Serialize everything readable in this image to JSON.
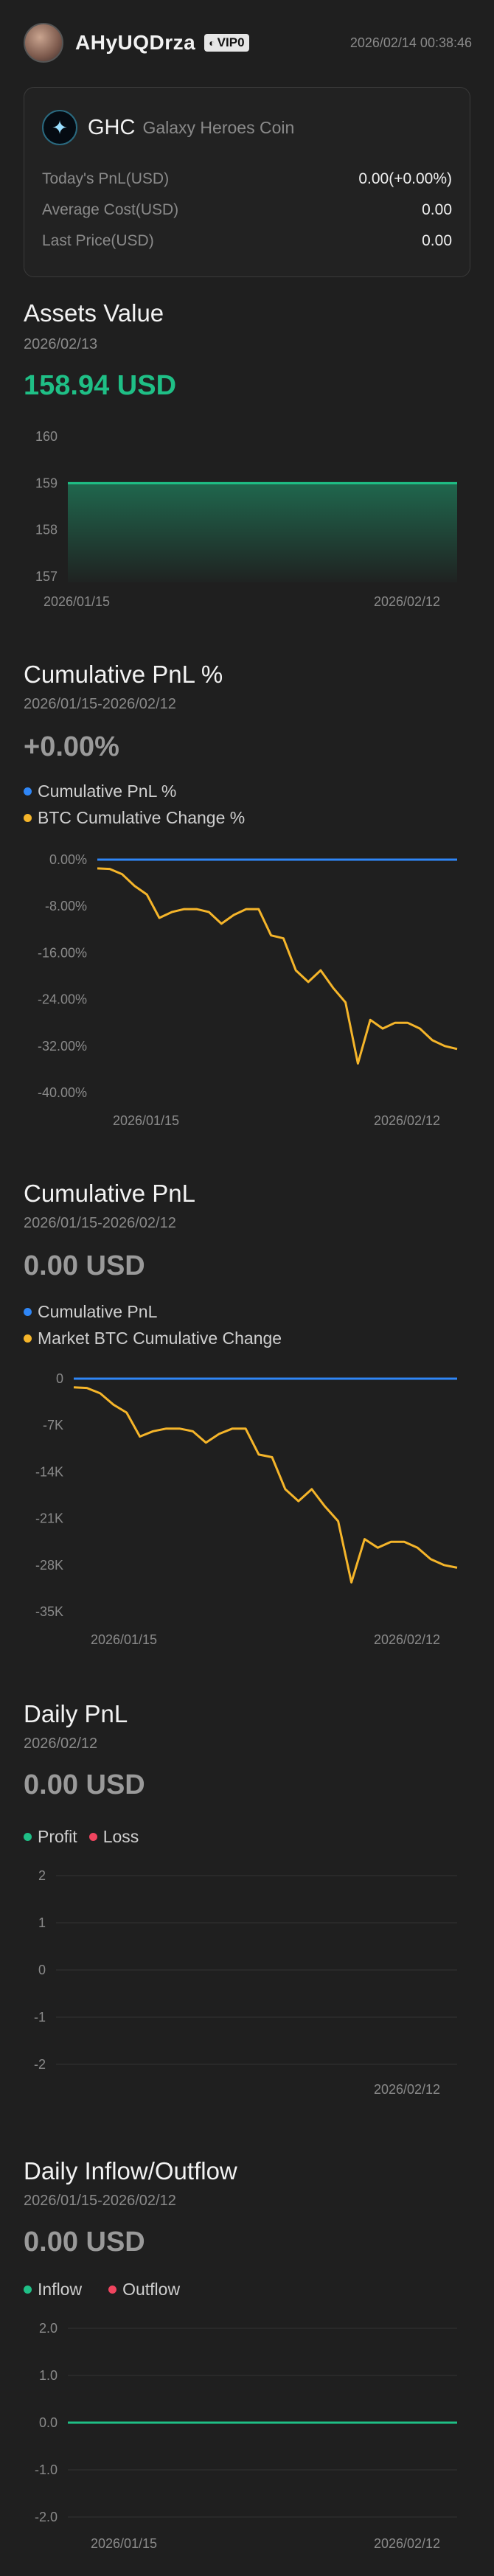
{
  "header": {
    "username": "AHyUQDrza",
    "vip_label": "VIP0",
    "timestamp": "2026/02/14 00:38:46"
  },
  "coin": {
    "symbol": "GHC",
    "name": "Galaxy Heroes Coin",
    "rows": [
      {
        "label": "Today's PnL(USD)",
        "value": "0.00(+0.00%)"
      },
      {
        "label": "Average Cost(USD)",
        "value": "0.00"
      },
      {
        "label": "Last Price(USD)",
        "value": "0.00"
      }
    ]
  },
  "colors": {
    "green": "#1fbf86",
    "blue": "#2f86f6",
    "yellow": "#f5b52a",
    "red": "#f0455f",
    "grey_value": "#9a9a9a"
  },
  "assets": {
    "title": "Assets Value",
    "date": "2026/02/13",
    "value": "158.94 USD"
  },
  "cum_pct": {
    "title": "Cumulative PnL %",
    "range": "2026/01/15-2026/02/12",
    "value": "+0.00%",
    "legend1": "Cumulative PnL %",
    "legend2": "BTC Cumulative Change %"
  },
  "cum_pnl": {
    "title": "Cumulative PnL",
    "range": "2026/01/15-2026/02/12",
    "value": "0.00 USD",
    "legend1": "Cumulative PnL",
    "legend2": "Market BTC Cumulative Change"
  },
  "daily": {
    "title": "Daily PnL",
    "date": "2026/02/12",
    "value": "0.00 USD",
    "legend1": "Profit",
    "legend2": "Loss"
  },
  "flow": {
    "title": "Daily Inflow/Outflow",
    "range": "2026/01/15-2026/02/12",
    "value": "0.00 USD",
    "legend1": "Inflow",
    "legend2": "Outflow"
  },
  "chart_data": [
    {
      "id": "assets",
      "type": "area",
      "yticks": [
        "160",
        "159",
        "158",
        "157"
      ],
      "ylim": [
        157,
        160
      ],
      "xticks": [
        "2026/01/15",
        "2026/02/12"
      ],
      "series": [
        {
          "values": [
            159,
            159
          ]
        }
      ]
    },
    {
      "id": "cum_pct",
      "type": "line",
      "yticks": [
        "0.00%",
        "-8.00%",
        "-16.00%",
        "-24.00%",
        "-32.00%",
        "-40.00%"
      ],
      "ylim": [
        -40,
        0
      ],
      "xticks": [
        "2026/01/15",
        "2026/02/12"
      ],
      "series": [
        {
          "name": "Cumulative PnL %",
          "values": [
            0,
            0
          ]
        },
        {
          "name": "BTC Cumulative Change %",
          "values": [
            -1.5,
            -1.6,
            -2.5,
            -4.5,
            -6,
            -10,
            -9,
            -8.5,
            -8.5,
            -9,
            -11,
            -9.5,
            -8.5,
            -8.5,
            -13,
            -13.5,
            -19,
            -21,
            -19,
            -22,
            -24.5,
            -35,
            -27.5,
            -29,
            -28,
            -28,
            -29,
            -31,
            -32,
            -32.5
          ]
        }
      ]
    },
    {
      "id": "cum_pnl",
      "type": "line",
      "yticks": [
        "0",
        "-7K",
        "-14K",
        "-21K",
        "-28K",
        "-35K"
      ],
      "ylim": [
        -35000,
        0
      ],
      "xticks": [
        "2026/01/15",
        "2026/02/12"
      ],
      "series": [
        {
          "name": "Cumulative PnL",
          "values": [
            0,
            0
          ]
        },
        {
          "name": "Market BTC Cumulative Change",
          "values": [
            -1300,
            -1400,
            -2200,
            -3900,
            -5100,
            -8700,
            -7900,
            -7500,
            -7500,
            -7900,
            -9600,
            -8300,
            -7500,
            -7500,
            -11400,
            -11800,
            -16600,
            -18400,
            -16600,
            -19200,
            -21400,
            -30600,
            -24100,
            -25400,
            -24500,
            -24500,
            -25400,
            -27100,
            -28000,
            -28400
          ]
        }
      ]
    },
    {
      "id": "daily",
      "type": "bar",
      "yticks": [
        "2",
        "1",
        "0",
        "-1",
        "-2"
      ],
      "ylim": [
        -2,
        2
      ],
      "xticks": [
        "",
        "2026/02/12"
      ],
      "series": []
    },
    {
      "id": "flow",
      "type": "line",
      "yticks": [
        "2.0",
        "1.0",
        "0.0",
        "-1.0",
        "-2.0"
      ],
      "ylim": [
        -2,
        2
      ],
      "xticks": [
        "2026/01/15",
        "2026/02/12"
      ],
      "series": [
        {
          "name": "Inflow",
          "values": [
            0,
            0
          ]
        }
      ]
    }
  ]
}
